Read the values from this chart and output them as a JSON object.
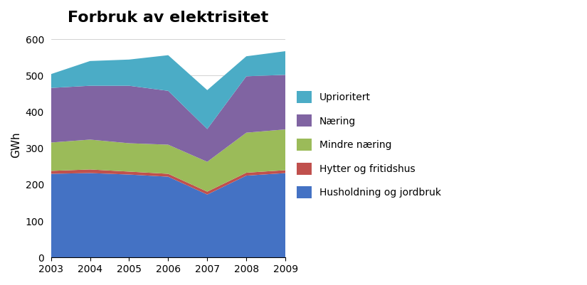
{
  "title": "Forbruk av elektrisitet",
  "ylabel": "GWh",
  "years": [
    2003,
    2004,
    2005,
    2006,
    2007,
    2008,
    2009
  ],
  "series": {
    "Husholdning og jordbruk": [
      230,
      232,
      228,
      222,
      173,
      225,
      232
    ],
    "Hytter og fritidshus": [
      8,
      10,
      8,
      8,
      8,
      8,
      8
    ],
    "Mindre næring": [
      78,
      82,
      78,
      80,
      82,
      110,
      112
    ],
    "Næring": [
      150,
      148,
      158,
      148,
      90,
      155,
      150
    ],
    "Uprioritert": [
      38,
      68,
      72,
      98,
      107,
      55,
      65
    ]
  },
  "colors": {
    "Husholdning og jordbruk": "#4472C4",
    "Hytter og fritidshus": "#C0504D",
    "Mindre næring": "#9BBB59",
    "Næring": "#8064A2",
    "Uprioritert": "#4BACC6"
  },
  "ylim": [
    0,
    620
  ],
  "yticks": [
    0,
    100,
    200,
    300,
    400,
    500,
    600
  ],
  "series_order": [
    "Husholdning og jordbruk",
    "Hytter og fritidshus",
    "Mindre næring",
    "Næring",
    "Uprioritert"
  ],
  "legend_order": [
    "Uprioritert",
    "Næring",
    "Mindre næring",
    "Hytter og fritidshus",
    "Husholdning og jordbruk"
  ],
  "background_color": "#FFFFFF",
  "title_fontsize": 16,
  "axis_fontsize": 11,
  "tick_fontsize": 10
}
